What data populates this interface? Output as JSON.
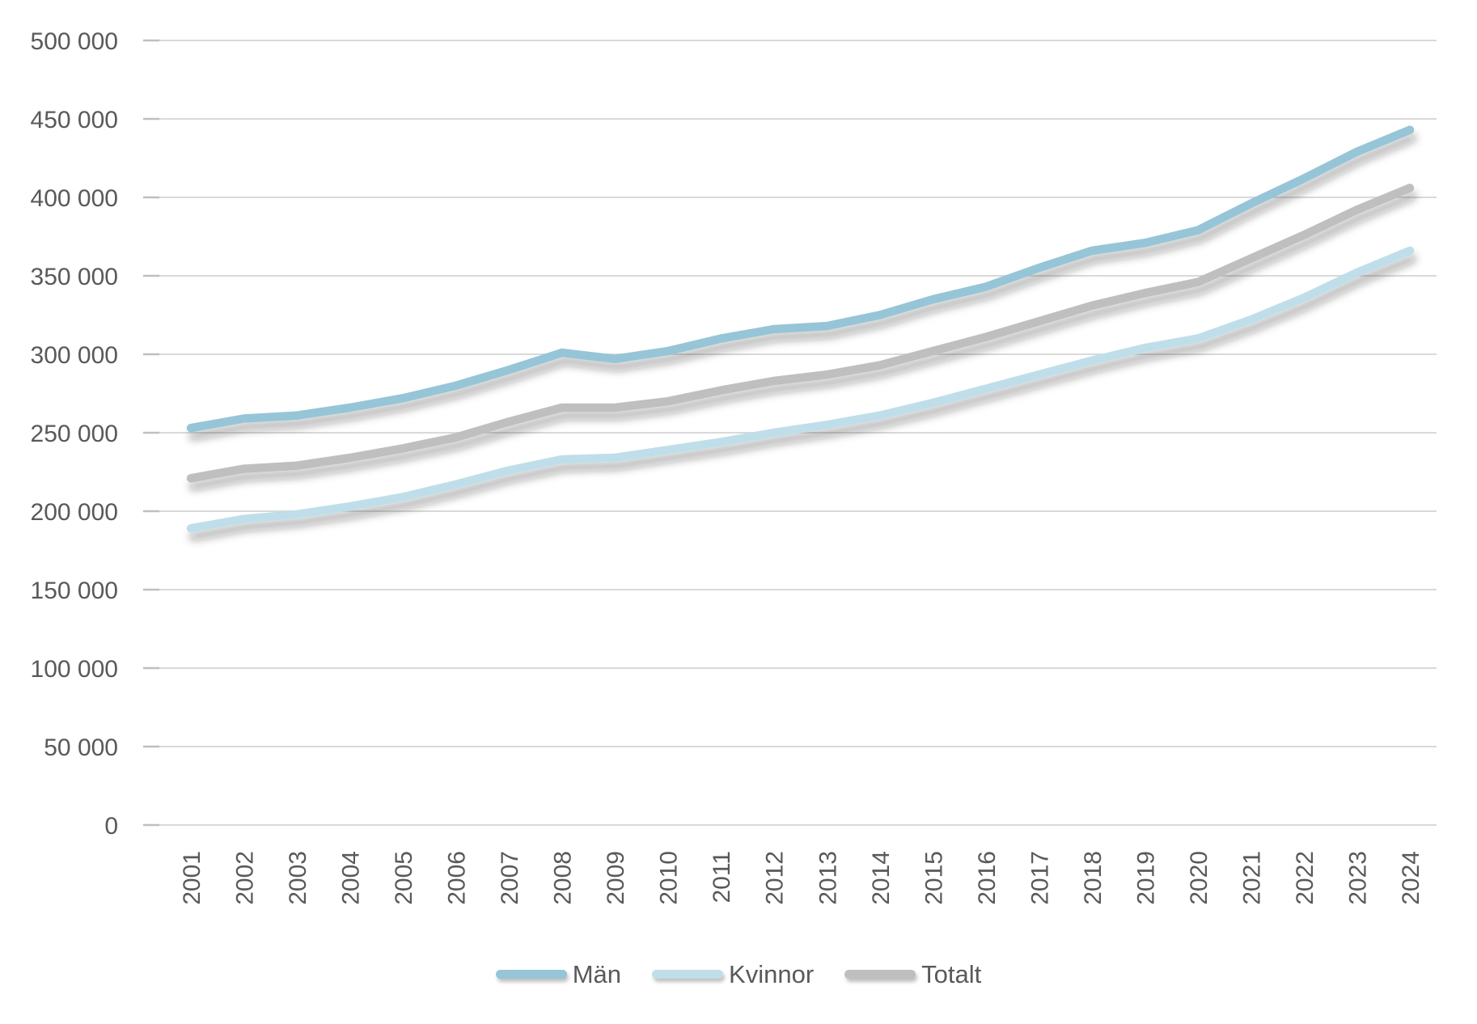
{
  "chart_data": {
    "type": "line",
    "title": "",
    "x": [
      "2001",
      "2002",
      "2003",
      "2004",
      "2005",
      "2006",
      "2007",
      "2008",
      "2009",
      "2010",
      "2011",
      "2012",
      "2013",
      "2014",
      "2015",
      "2016",
      "2017",
      "2018",
      "2019",
      "2020",
      "2021",
      "2022",
      "2023",
      "2024"
    ],
    "series": [
      {
        "name": "Män",
        "color": "#96C5D7",
        "values": [
          253000,
          259000,
          261000,
          266000,
          272000,
          280000,
          290000,
          301000,
          297000,
          302000,
          310000,
          316000,
          318000,
          325000,
          335000,
          343000,
          355000,
          366000,
          371000,
          379000,
          396000,
          412000,
          429000,
          443000
        ]
      },
      {
        "name": "Kvinnor",
        "color": "#BFDEEA",
        "values": [
          189000,
          195000,
          198000,
          203000,
          209000,
          217000,
          226000,
          233000,
          234000,
          239000,
          244000,
          250000,
          255000,
          261000,
          269000,
          278000,
          287000,
          296000,
          304000,
          310000,
          322000,
          336000,
          352000,
          366000
        ]
      },
      {
        "name": "Totalt",
        "color": "#BFBFBF",
        "values": [
          221000,
          227000,
          229000,
          234000,
          240000,
          247000,
          257000,
          266000,
          266000,
          270000,
          277000,
          283000,
          287000,
          293000,
          302000,
          311000,
          321000,
          331000,
          339000,
          346000,
          361000,
          376000,
          392000,
          406000
        ]
      }
    ],
    "ylim": [
      0,
      500000
    ],
    "ytick_step": 50000,
    "ytick_labels": [
      "0",
      "50 000",
      "100 000",
      "150 000",
      "200 000",
      "250 000",
      "300 000",
      "350 000",
      "400 000",
      "450 000",
      "500 000"
    ],
    "xlabel": "",
    "ylabel": "",
    "grid": true,
    "x_label_rotation": -90,
    "legend_position": "bottom-center",
    "colors": {
      "gridline": "#D9D9D9",
      "tick": "#BFBFBF",
      "axis_text": "#595959",
      "background": "#FFFFFF"
    }
  }
}
